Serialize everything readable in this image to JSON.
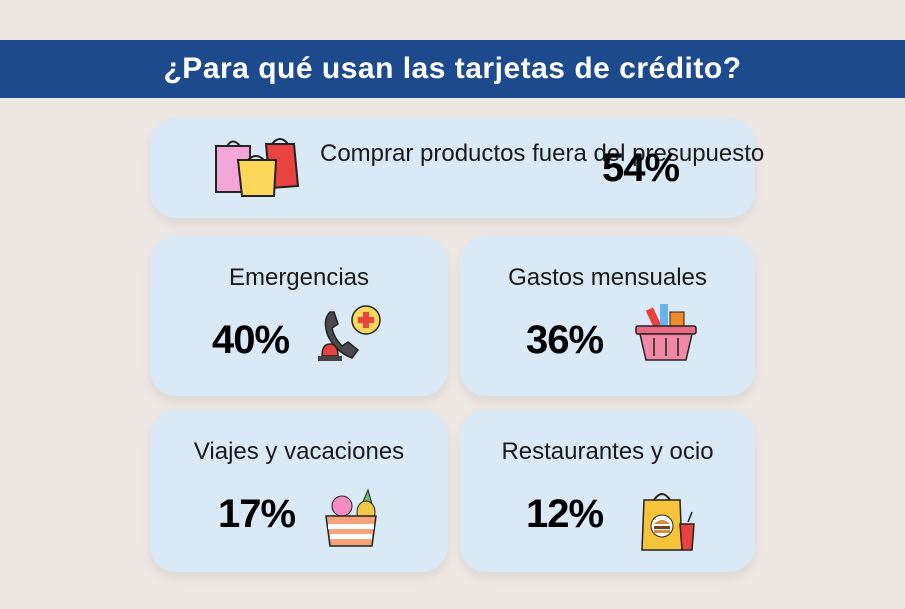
{
  "header": {
    "title": "¿Para qué usan las tarjetas de crédito?"
  },
  "items": {
    "shopping": {
      "label": "Comprar productos fuera del presupuesto",
      "value": "54%",
      "icon": "shopping-bags-icon"
    },
    "emergencies": {
      "label": "Emergencias",
      "value": "40%",
      "icon": "emergency-phone-icon"
    },
    "monthly": {
      "label": "Gastos mensuales",
      "value": "36%",
      "icon": "shopping-basket-icon"
    },
    "travel": {
      "label": "Viajes y vacaciones",
      "value": "17%",
      "icon": "beach-bag-icon"
    },
    "restaurants": {
      "label": "Restaurantes y ocio",
      "value": "12%",
      "icon": "takeaway-bag-icon"
    }
  },
  "colors": {
    "header_bg": "#1d4a8c",
    "card_bg": "#d9e9f5",
    "page_bg": "#ece7e3"
  }
}
